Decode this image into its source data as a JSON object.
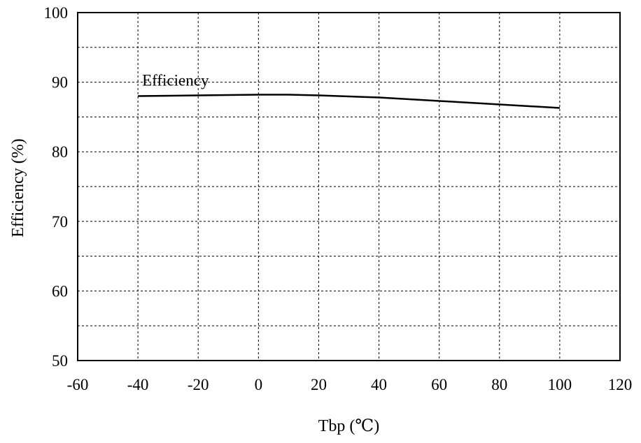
{
  "chart_data": {
    "type": "line",
    "title": "",
    "xlabel": "Tbp (℃)",
    "ylabel": "Efficiency (%)",
    "xlim": [
      -60,
      120
    ],
    "ylim": [
      50,
      100
    ],
    "xticks": [
      -60,
      -40,
      -20,
      0,
      20,
      40,
      60,
      80,
      100,
      120
    ],
    "yticks": [
      50,
      60,
      70,
      80,
      90,
      100
    ],
    "y_minor_gridlines": [
      55,
      65,
      75,
      85,
      95
    ],
    "grid": true,
    "legend": "none",
    "series": [
      {
        "name": "Efficiency",
        "x": [
          -40,
          -20,
          0,
          10,
          20,
          40,
          60,
          80,
          100
        ],
        "y": [
          88.0,
          88.1,
          88.2,
          88.2,
          88.1,
          87.8,
          87.3,
          86.8,
          86.3
        ]
      }
    ],
    "annotations": [
      {
        "text": "Efficiency",
        "x": -40,
        "y": 90.3
      }
    ]
  }
}
